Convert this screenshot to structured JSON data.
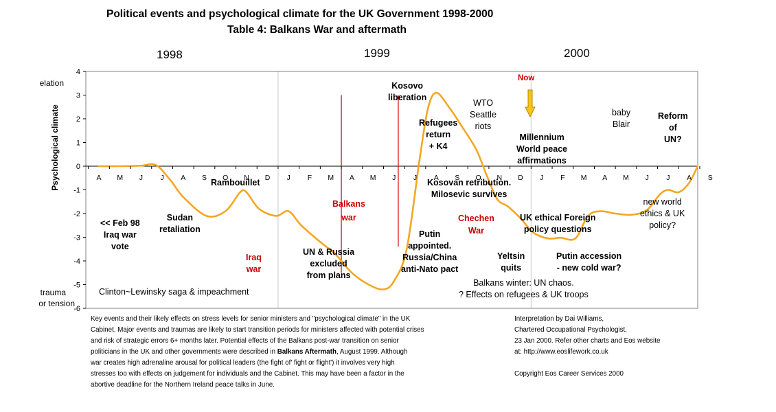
{
  "header": {
    "title_line1": "Political events and psychological climate for the UK Government 1998-2000",
    "title_line2": "Table 4:  Balkans War and aftermath"
  },
  "years": [
    "1998",
    "1999",
    "2000"
  ],
  "side_labels": {
    "elation": "elation",
    "trauma": "trauma",
    "tension": "or tension"
  },
  "chart_data": {
    "type": "line",
    "title": "Political events and psychological climate for the UK Government 1998-2000",
    "subtitle": "Table 4:  Balkans War and aftermath",
    "ylabel": "Psychological climate",
    "xlabel": "",
    "ylim": [
      -6,
      4
    ],
    "yticks": [
      4,
      3,
      2,
      1,
      0,
      -1,
      -2,
      -3,
      -4,
      -5,
      -6
    ],
    "month_labels": [
      "A",
      "M",
      "J",
      "J",
      "A",
      "S",
      "O",
      "N",
      "D",
      "J",
      "F",
      "M",
      "A",
      "M",
      "J",
      "J",
      "A",
      "S",
      "O",
      "N",
      "D",
      "J",
      "F",
      "M",
      "A",
      "M",
      "J",
      "J",
      "A",
      "S"
    ],
    "series": [
      {
        "name": "Psychological climate",
        "color": "#f5a623",
        "points": [
          [
            0,
            0
          ],
          [
            1,
            0
          ],
          [
            2,
            0.02
          ],
          [
            2.7,
            0.05
          ],
          [
            3.4,
            -0.6
          ],
          [
            4,
            -1.3
          ],
          [
            5.1,
            -2.1
          ],
          [
            6,
            -1.9
          ],
          [
            6.7,
            -1.1
          ],
          [
            7,
            -1.1
          ],
          [
            7.6,
            -1.8
          ],
          [
            8.4,
            -2.1
          ],
          [
            9,
            -1.9
          ],
          [
            9.6,
            -2.5
          ],
          [
            10.5,
            -3.2
          ],
          [
            11.2,
            -3.7
          ],
          [
            12,
            -4.5
          ],
          [
            12.8,
            -5
          ],
          [
            13.5,
            -5.2
          ],
          [
            14,
            -4.85
          ],
          [
            14.6,
            -3.5
          ],
          [
            15.2,
            0.2
          ],
          [
            15.6,
            2.4
          ],
          [
            16,
            3.1
          ],
          [
            16.6,
            2.5
          ],
          [
            17.2,
            1.7
          ],
          [
            17.9,
            0.7
          ],
          [
            18.4,
            -0.4
          ],
          [
            18.9,
            -1.4
          ],
          [
            19.4,
            -1.7
          ],
          [
            20,
            -2.2
          ],
          [
            20.6,
            -2.8
          ],
          [
            21.3,
            -3.05
          ],
          [
            21.9,
            -3.02
          ],
          [
            22.6,
            -3.05
          ],
          [
            23.2,
            -2.1
          ],
          [
            23.8,
            -1.9
          ],
          [
            24.5,
            -2
          ],
          [
            25.3,
            -2.05
          ],
          [
            26,
            -1.85
          ],
          [
            26.6,
            -1.2
          ],
          [
            27,
            -1
          ],
          [
            27.5,
            -1.1
          ],
          [
            28,
            -0.7
          ],
          [
            28.4,
            0
          ]
        ]
      }
    ],
    "event_markers": [
      {
        "label": "start",
        "x": 11.5,
        "y_from": -4.5,
        "y_to": 3
      },
      {
        "label": "end",
        "x": 14.2,
        "y_from": -3.4,
        "y_to": 3
      },
      {
        "label": "1999 divider",
        "x": 8.5,
        "y_from": -6,
        "y_to": 4
      },
      {
        "label": "2000 divider",
        "x": 20.5,
        "y_from": -6,
        "y_to": 4
      }
    ]
  },
  "events": [
    {
      "key": "iraq_vote",
      "lines": [
        "<< Feb  98",
        "Iraq war",
        "vote"
      ]
    },
    {
      "key": "sudan",
      "lines": [
        "Sudan",
        "retaliation"
      ]
    },
    {
      "key": "rambouillet",
      "lines": [
        "Rambouillet"
      ]
    },
    {
      "key": "iraq_war",
      "lines": [
        "Iraq",
        "war"
      ]
    },
    {
      "key": "balkans_war",
      "lines": [
        "Balkans",
        "war"
      ]
    },
    {
      "key": "un_russia",
      "lines": [
        "UN & Russia",
        "excluded",
        "from plans"
      ]
    },
    {
      "key": "kosovo",
      "lines": [
        "Kosovo",
        "liberation"
      ]
    },
    {
      "key": "refugees",
      "lines": [
        "Refugees",
        "return",
        "+ K4"
      ]
    },
    {
      "key": "kosovan",
      "lines": [
        "Kosovan retribution.",
        "Milosevic survives"
      ]
    },
    {
      "key": "putin",
      "lines": [
        "Putin",
        "appointed.",
        "Russia/China",
        "anti-Nato pact"
      ]
    },
    {
      "key": "chechen",
      "lines": [
        "Chechen",
        "War"
      ]
    },
    {
      "key": "wto",
      "lines": [
        "WTO",
        "Seattle",
        "riots"
      ]
    },
    {
      "key": "now",
      "lines": [
        "Now"
      ]
    },
    {
      "key": "millennium",
      "lines": [
        "Millennium",
        "World peace",
        "affirmations"
      ]
    },
    {
      "key": "yeltsin",
      "lines": [
        "Yeltsin",
        "quits"
      ]
    },
    {
      "key": "uk_ethical",
      "lines": [
        "UK ethical Foreign",
        "policy questions"
      ]
    },
    {
      "key": "putin_accession",
      "lines": [
        "Putin accession",
        "- new cold war?"
      ]
    },
    {
      "key": "baby_blair",
      "lines": [
        "baby",
        "Blair"
      ]
    },
    {
      "key": "reform_un",
      "lines": [
        "Reform",
        "of",
        "UN?"
      ]
    },
    {
      "key": "new_world",
      "lines": [
        "new world",
        "ethics & UK",
        "policy?"
      ]
    },
    {
      "key": "clinton",
      "lines": [
        "Clinton~Lewinsky saga & impeachment"
      ]
    },
    {
      "key": "balkans_winter",
      "lines": [
        "Balkans winter: UN chaos.",
        "? Effects on refugees & UK troops"
      ]
    }
  ],
  "footnote_left": {
    "lines": [
      "Key events and their likely effects on stress levels for senior ministers and \"psychological climate\" in the UK",
      "Cabinet. Major events and traumas are likely to start transition periods for ministers affected with potential crises",
      "and risk of strategic errors 6+ months later.  Potential effects of the Balkans post-war transition on senior",
      "war creates high adrenaline arousal for political leaders (the fight of' fight or flight') it involves very high",
      "stresses too with effects on judgement for individuals and the Cabinet.  This may have been a factor in the",
      "abortive deadline for the Northern Ireland peace talks in June."
    ],
    "line4_pre": "politicians in the UK and other governments were described in ",
    "line4_bold": "Balkans Aftermath",
    "line4_post": ", August 1999.  Although"
  },
  "footnote_right": {
    "lines": [
      "Interpretation by Dai Williams,",
      "Chartered Occupational Psychologist,",
      "23 Jan 2000.  Refer other charts and Eos website",
      "at: http://www.eoslifework.co.uk",
      "",
      "Copyright Eos Career Services 2000"
    ]
  },
  "colors": {
    "curve": "#f5a623",
    "event_red": "#cc0000",
    "marker_line": "#cc0000",
    "divider": "#c8c8c8",
    "plot_border": "#808080",
    "now_arrow": "#f5c518"
  }
}
